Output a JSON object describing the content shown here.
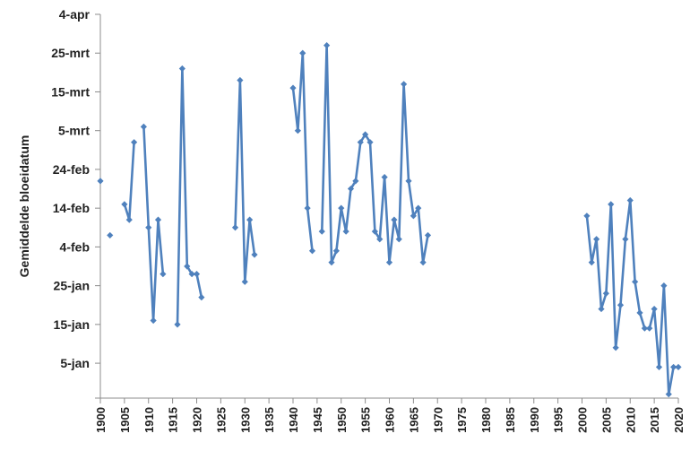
{
  "chart_data": {
    "type": "line",
    "title": "",
    "xlabel": "",
    "ylabel": "Gemiddelde bloeidatum",
    "x_ticks": [
      "1900",
      "1905",
      "1910",
      "1915",
      "1920",
      "1925",
      "1930",
      "1935",
      "1940",
      "1945",
      "1950",
      "1955",
      "1960",
      "1965",
      "1970",
      "1975",
      "1980",
      "1985",
      "1990",
      "1995",
      "2000",
      "2005",
      "2010",
      "2015",
      "2020"
    ],
    "y_tick_labels": [
      "5-jan",
      "15-jan",
      "25-jan",
      "4-feb",
      "14-feb",
      "24-feb",
      "5-mrt",
      "15-mrt",
      "25-mrt",
      "4-apr"
    ],
    "xlim": [
      1900,
      2020
    ],
    "ylim_day_of_year": [
      -4,
      95
    ],
    "y_unit": "day of year (1 = 1-jan)",
    "grid": false,
    "legend": "none",
    "color": "#4F81BD",
    "segments": [
      {
        "x": [
          1900
        ],
        "y": [
          52
        ]
      },
      {
        "x": [
          1902
        ],
        "y": [
          38
        ]
      },
      {
        "x": [
          1905,
          1906,
          1907
        ],
        "y": [
          46,
          42,
          62
        ]
      },
      {
        "x": [
          1909,
          1910,
          1911,
          1912,
          1913
        ],
        "y": [
          66,
          40,
          16,
          42,
          28
        ]
      },
      {
        "x": [
          1916,
          1917,
          1918,
          1919,
          1920,
          1921
        ],
        "y": [
          15,
          81,
          30,
          28,
          28,
          22
        ]
      },
      {
        "x": [
          1928,
          1929,
          1930,
          1931,
          1932
        ],
        "y": [
          40,
          78,
          26,
          42,
          33
        ]
      },
      {
        "x": [
          1940,
          1941,
          1942,
          1943,
          1944
        ],
        "y": [
          76,
          65,
          85,
          45,
          34
        ]
      },
      {
        "x": [
          1946,
          1947,
          1948,
          1949,
          1950,
          1951,
          1952,
          1953,
          1954,
          1955,
          1956,
          1957,
          1958,
          1959,
          1960,
          1961,
          1962,
          1963,
          1964,
          1965,
          1966,
          1967,
          1968
        ],
        "y": [
          39,
          87,
          31,
          34,
          45,
          39,
          50,
          52,
          62,
          64,
          62,
          39,
          37,
          53,
          31,
          42,
          37,
          77,
          52,
          43,
          45,
          31,
          38
        ]
      },
      {
        "x": [
          2001,
          2002,
          2003,
          2004,
          2005,
          2006,
          2007,
          2008,
          2009,
          2010,
          2011,
          2012,
          2013,
          2014,
          2015,
          2016,
          2017,
          2018,
          2019,
          2020
        ],
        "y": [
          43,
          31,
          37,
          19,
          23,
          46,
          9,
          20,
          37,
          47,
          26,
          18,
          14,
          14,
          19,
          4,
          25,
          -3,
          4,
          4
        ]
      }
    ]
  }
}
